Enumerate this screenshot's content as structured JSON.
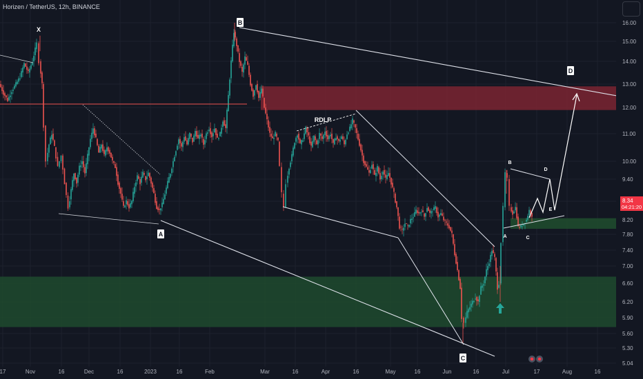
{
  "header": {
    "title": "Horizen / TetherUS, 12h, BINANCE"
  },
  "price_tag": {
    "price": "8.34",
    "countdown": "04:21:20",
    "color": "#f23645"
  },
  "colors": {
    "background": "#131722",
    "bull": "#26a69a",
    "bear": "#ef5350",
    "supply_zone": "#7b2431",
    "demand_zone": "#1f4a2e",
    "lines": "#ffffff",
    "arrow": "#26a69a"
  },
  "icons": [
    "menu-icon",
    "up-arrow-icon",
    "event-icon"
  ],
  "chart_data": {
    "type": "candlestick",
    "symbol": "ZEN/USDT",
    "timeframe": "12h",
    "exchange": "BINANCE",
    "y_axis": {
      "scale": "log",
      "range": [
        5.0,
        16.6
      ],
      "ticks": [
        "16.00",
        "15.00",
        "14.00",
        "13.00",
        "12.00",
        "11.00",
        "10.00",
        "9.40",
        "8.80",
        "8.20",
        "7.80",
        "7.40",
        "7.00",
        "6.60",
        "6.20",
        "5.90",
        "5.60",
        "5.30",
        "5.04"
      ]
    },
    "x_axis": {
      "ticks": [
        "17",
        "Nov",
        "16",
        "Dec",
        "16",
        "2023",
        "16",
        "Feb",
        "Mar",
        "16",
        "Apr",
        "16",
        "May",
        "16",
        "Jun",
        "16",
        "Jul",
        "17",
        "Aug",
        "16"
      ]
    },
    "price_path": [
      [
        0,
        13.0
      ],
      [
        6,
        12.6
      ],
      [
        12,
        12.3
      ],
      [
        18,
        12.7
      ],
      [
        24,
        13.0
      ],
      [
        30,
        13.3
      ],
      [
        36,
        13.9
      ],
      [
        42,
        13.5
      ],
      [
        48,
        14.0
      ],
      [
        52,
        14.6
      ],
      [
        55,
        14.9
      ],
      [
        58,
        14.0
      ],
      [
        62,
        13.0
      ],
      [
        65,
        11.3
      ],
      [
        68,
        10.0
      ],
      [
        72,
        10.6
      ],
      [
        76,
        11.0
      ],
      [
        80,
        10.5
      ],
      [
        85,
        9.8
      ],
      [
        90,
        10.2
      ],
      [
        95,
        9.3
      ],
      [
        100,
        8.6
      ],
      [
        104,
        9.1
      ],
      [
        108,
        9.6
      ],
      [
        112,
        9.3
      ],
      [
        116,
        9.8
      ],
      [
        120,
        10.0
      ],
      [
        124,
        9.6
      ],
      [
        128,
        10.2
      ],
      [
        132,
        10.8
      ],
      [
        136,
        11.2
      ],
      [
        140,
        10.8
      ],
      [
        144,
        10.3
      ],
      [
        148,
        10.6
      ],
      [
        152,
        10.2
      ],
      [
        156,
        10.5
      ],
      [
        160,
        10.3
      ],
      [
        164,
        10.0
      ],
      [
        168,
        9.8
      ],
      [
        172,
        9.3
      ],
      [
        176,
        9.0
      ],
      [
        180,
        8.6
      ],
      [
        184,
        8.8
      ],
      [
        188,
        8.6
      ],
      [
        192,
        8.8
      ],
      [
        196,
        9.2
      ],
      [
        200,
        9.5
      ],
      [
        204,
        9.3
      ],
      [
        208,
        9.6
      ],
      [
        212,
        9.4
      ],
      [
        216,
        9.6
      ],
      [
        220,
        9.3
      ],
      [
        224,
        9.0
      ],
      [
        228,
        8.6
      ],
      [
        232,
        8.5
      ],
      [
        236,
        8.7
      ],
      [
        240,
        9.0
      ],
      [
        244,
        9.3
      ],
      [
        248,
        9.6
      ],
      [
        252,
        10.0
      ],
      [
        256,
        10.4
      ],
      [
        260,
        10.8
      ],
      [
        264,
        10.5
      ],
      [
        268,
        10.9
      ],
      [
        272,
        10.6
      ],
      [
        276,
        11.0
      ],
      [
        280,
        10.7
      ],
      [
        284,
        11.1
      ],
      [
        288,
        10.8
      ],
      [
        292,
        11.0
      ],
      [
        296,
        10.6
      ],
      [
        300,
        11.0
      ],
      [
        304,
        11.2
      ],
      [
        308,
        10.9
      ],
      [
        312,
        11.2
      ],
      [
        316,
        10.8
      ],
      [
        320,
        11.0
      ],
      [
        324,
        11.5
      ],
      [
        328,
        11.2
      ],
      [
        332,
        12.5
      ],
      [
        336,
        14.0
      ],
      [
        340,
        15.5
      ],
      [
        344,
        14.8
      ],
      [
        348,
        14.0
      ],
      [
        352,
        13.5
      ],
      [
        356,
        14.2
      ],
      [
        360,
        13.8
      ],
      [
        364,
        13.0
      ],
      [
        368,
        12.5
      ],
      [
        372,
        13.0
      ],
      [
        376,
        12.4
      ],
      [
        380,
        12.8
      ],
      [
        384,
        12.0
      ],
      [
        388,
        11.5
      ],
      [
        392,
        11.0
      ],
      [
        396,
        10.8
      ],
      [
        400,
        11.0
      ],
      [
        404,
        10.7
      ],
      [
        407,
        9.8
      ],
      [
        410,
        9.0
      ],
      [
        413,
        8.6
      ],
      [
        416,
        9.3
      ],
      [
        420,
        9.8
      ],
      [
        424,
        10.2
      ],
      [
        428,
        10.7
      ],
      [
        432,
        11.0
      ],
      [
        436,
        10.6
      ],
      [
        440,
        10.8
      ],
      [
        444,
        11.2
      ],
      [
        448,
        10.9
      ],
      [
        452,
        10.5
      ],
      [
        456,
        10.9
      ],
      [
        460,
        10.6
      ],
      [
        464,
        11.0
      ],
      [
        468,
        10.8
      ],
      [
        472,
        11.1
      ],
      [
        476,
        10.8
      ],
      [
        480,
        11.0
      ],
      [
        484,
        10.6
      ],
      [
        488,
        10.9
      ],
      [
        492,
        10.7
      ],
      [
        496,
        10.9
      ],
      [
        500,
        10.6
      ],
      [
        504,
        11.0
      ],
      [
        508,
        11.2
      ],
      [
        512,
        11.5
      ],
      [
        516,
        11.2
      ],
      [
        520,
        10.8
      ],
      [
        524,
        10.4
      ],
      [
        528,
        10.0
      ],
      [
        532,
        9.8
      ],
      [
        536,
        9.6
      ],
      [
        540,
        9.9
      ],
      [
        544,
        9.5
      ],
      [
        548,
        9.8
      ],
      [
        552,
        9.4
      ],
      [
        556,
        9.7
      ],
      [
        560,
        9.4
      ],
      [
        564,
        9.6
      ],
      [
        568,
        9.3
      ],
      [
        572,
        9.0
      ],
      [
        576,
        8.6
      ],
      [
        580,
        8.0
      ],
      [
        584,
        7.9
      ],
      [
        588,
        8.1
      ],
      [
        592,
        8.0
      ],
      [
        596,
        8.2
      ],
      [
        600,
        8.3
      ],
      [
        604,
        8.5
      ],
      [
        608,
        8.4
      ],
      [
        612,
        8.5
      ],
      [
        616,
        8.3
      ],
      [
        620,
        8.6
      ],
      [
        624,
        8.4
      ],
      [
        628,
        8.5
      ],
      [
        632,
        8.6
      ],
      [
        636,
        8.3
      ],
      [
        640,
        8.4
      ],
      [
        644,
        8.2
      ],
      [
        648,
        8.1
      ],
      [
        652,
        8.0
      ],
      [
        656,
        7.8
      ],
      [
        660,
        7.3
      ],
      [
        664,
        6.9
      ],
      [
        668,
        6.5
      ],
      [
        671,
        5.9
      ],
      [
        674,
        5.8
      ],
      [
        678,
        6.0
      ],
      [
        682,
        6.1
      ],
      [
        686,
        6.2
      ],
      [
        690,
        6.3
      ],
      [
        694,
        6.2
      ],
      [
        698,
        6.5
      ],
      [
        702,
        6.6
      ],
      [
        706,
        6.9
      ],
      [
        710,
        7.1
      ],
      [
        714,
        7.4
      ],
      [
        718,
        7.2
      ],
      [
        722,
        6.5
      ],
      [
        725,
        6.6
      ],
      [
        728,
        7.6
      ],
      [
        731,
        8.6
      ],
      [
        734,
        9.6
      ],
      [
        737,
        9.4
      ],
      [
        740,
        8.6
      ],
      [
        744,
        8.4
      ],
      [
        748,
        8.6
      ],
      [
        752,
        8.0
      ],
      [
        756,
        8.0
      ],
      [
        760,
        8.1
      ],
      [
        764,
        8.2
      ],
      [
        768,
        8.5
      ],
      [
        772,
        8.34
      ]
    ],
    "zones": [
      {
        "name": "supply",
        "from": 11.9,
        "to": 12.9
      },
      {
        "name": "demand-upper",
        "from": 7.95,
        "to": 8.25
      },
      {
        "name": "demand-lower",
        "from": 5.72,
        "to": 6.75
      }
    ],
    "annotations": [
      {
        "text": "X",
        "style": "plain"
      },
      {
        "text": "B",
        "style": "box"
      },
      {
        "text": "A",
        "style": "box"
      },
      {
        "text": "C",
        "style": "box"
      },
      {
        "text": "D",
        "style": "box"
      },
      {
        "text": "RDLP",
        "style": "plain"
      },
      {
        "text": "B",
        "style": "small"
      },
      {
        "text": "D",
        "style": "small"
      },
      {
        "text": "A",
        "style": "small"
      },
      {
        "text": "C",
        "style": "small"
      },
      {
        "text": "E",
        "style": "small"
      }
    ]
  }
}
